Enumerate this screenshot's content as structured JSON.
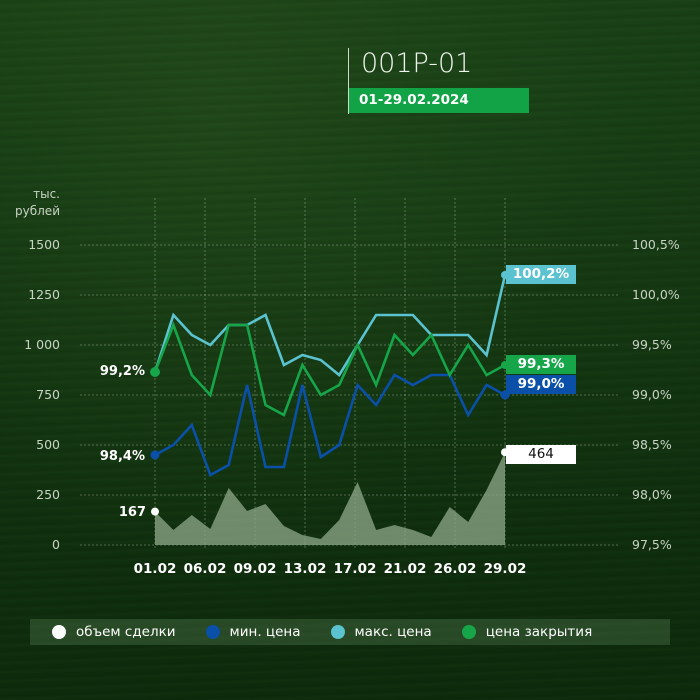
{
  "header": {
    "title": "001P-01",
    "period": "01-29.02.2024"
  },
  "axes": {
    "left_unit_line1": "тыс.",
    "left_unit_line2": "рублей",
    "left_ticks": [
      "1500",
      "1250",
      "1 000",
      "750",
      "500",
      "250",
      "0"
    ],
    "right_ticks": [
      "100,5%",
      "100,0%",
      "99,5%",
      "99,0%",
      "98,5%",
      "98,0%",
      "97,5%"
    ],
    "x_ticks": [
      "01.02",
      "06.02",
      "09.02",
      "13.02",
      "17.02",
      "21.02",
      "26.02",
      "29.02"
    ]
  },
  "start_labels": {
    "close": "99,2%",
    "min": "98,4%",
    "volume": "167"
  },
  "end_labels": {
    "max": "100,2%",
    "close": "99,3%",
    "min": "99,0%",
    "volume": "464"
  },
  "legend": [
    {
      "label": "объем сделки",
      "color": "#ffffff"
    },
    {
      "label": "мин. цена",
      "color": "#0a50a8"
    },
    {
      "label": "макс. цена",
      "color": "#5bc2cf"
    },
    {
      "label": "цена закрытия",
      "color": "#16a549"
    }
  ],
  "colors": {
    "volume_fill": "#8fa98a",
    "min": "#0a50a8",
    "max": "#5bc2cf",
    "close": "#16a549",
    "period_bg": "#12a347"
  },
  "chart_data": {
    "type": "line",
    "title": "001P-01",
    "subtitle": "01-29.02.2024",
    "xlabel": "",
    "ylabel": "тыс. рублей",
    "ylabel_right": "%",
    "ylim": [
      0,
      1500
    ],
    "ylim_right": [
      97.5,
      100.5
    ],
    "grid": true,
    "legend_position": "bottom",
    "x": [
      "01.02",
      "02.02",
      "05.02",
      "06.02",
      "07.02",
      "08.02",
      "09.02",
      "12.02",
      "13.02",
      "14.02",
      "15.02",
      "16.02",
      "17.02",
      "19.02",
      "20.02",
      "21.02",
      "22.02",
      "26.02",
      "27.02",
      "29.02"
    ],
    "series": [
      {
        "name": "объем сделки",
        "axis": "left",
        "type": "area",
        "values": [
          167,
          75,
          150,
          80,
          285,
          170,
          205,
          95,
          50,
          30,
          125,
          315,
          75,
          100,
          75,
          40,
          190,
          115,
          275,
          464
        ]
      },
      {
        "name": "мин. цена",
        "axis": "right",
        "values": [
          98.4,
          98.5,
          98.7,
          98.2,
          98.3,
          99.1,
          98.28,
          98.28,
          99.1,
          98.38,
          98.5,
          99.1,
          98.9,
          99.2,
          99.1,
          99.2,
          99.2,
          98.8,
          99.1,
          99.0
        ]
      },
      {
        "name": "макс. цена",
        "axis": "right",
        "values": [
          99.23,
          99.8,
          99.6,
          99.5,
          99.7,
          99.7,
          99.8,
          99.3,
          99.4,
          99.35,
          99.2,
          99.5,
          99.8,
          99.8,
          99.8,
          99.6,
          99.6,
          99.6,
          99.4,
          100.2
        ]
      },
      {
        "name": "цена закрытия",
        "axis": "right",
        "values": [
          99.23,
          99.7,
          99.2,
          99.0,
          99.7,
          99.7,
          98.9,
          98.8,
          99.3,
          99.0,
          99.1,
          99.5,
          99.1,
          99.6,
          99.4,
          99.6,
          99.2,
          99.5,
          99.2,
          99.3
        ]
      }
    ]
  }
}
